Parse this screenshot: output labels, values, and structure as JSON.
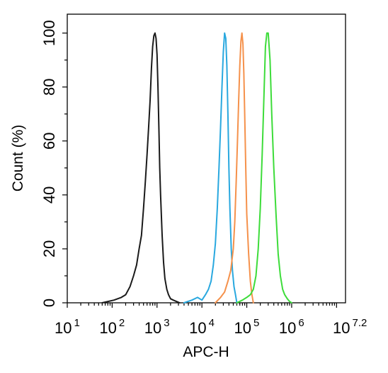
{
  "chart_data": {
    "type": "line",
    "xlabel": "APC-H",
    "ylabel": "Count  (%)",
    "x_scale": "log10",
    "xlim": [
      10,
      15848931.9
    ],
    "ylim": [
      0,
      107
    ],
    "x_tick_labels": [
      {
        "base": "10",
        "exp": "1"
      },
      {
        "base": "10",
        "exp": "2"
      },
      {
        "base": "10",
        "exp": "3"
      },
      {
        "base": "10",
        "exp": "4"
      },
      {
        "base": "10",
        "exp": "5"
      },
      {
        "base": "10",
        "exp": "6"
      },
      {
        "base": "10",
        "exp": "7.2"
      }
    ],
    "y_ticks": [
      0,
      20,
      40,
      60,
      80,
      100
    ],
    "grid": false,
    "legend": "none",
    "series": [
      {
        "color": "#1a1a1a",
        "x": [
          60,
          110,
          160,
          200,
          250,
          300,
          350,
          400,
          450,
          500,
          550,
          600,
          650,
          700,
          750,
          800,
          850,
          900,
          950,
          1000,
          1050,
          1100,
          1150,
          1200,
          1300,
          1400,
          1500,
          1650,
          1800,
          2000,
          2300,
          2700,
          3200
        ],
        "y": [
          0,
          1,
          2,
          3,
          6,
          10,
          14,
          20,
          25,
          35,
          45,
          55,
          65,
          75,
          87,
          95,
          99,
          100,
          98,
          92,
          80,
          65,
          50,
          40,
          25,
          15,
          9,
          5,
          3,
          1.5,
          1,
          0.5,
          0
        ]
      },
      {
        "color": "#29a8df",
        "x": [
          4000,
          6000,
          8000,
          10000,
          12000,
          14000,
          16000,
          18000,
          20000,
          22000,
          24000,
          26000,
          28000,
          30000,
          32000,
          34000,
          36000,
          38000,
          40000,
          42000,
          45000,
          48000,
          52000,
          56000,
          60000
        ],
        "y": [
          0,
          1,
          2,
          1,
          3,
          5,
          8,
          14,
          22,
          35,
          50,
          65,
          80,
          93,
          100,
          98,
          88,
          70,
          50,
          35,
          20,
          12,
          6,
          3,
          0
        ]
      },
      {
        "color": "#f5914b",
        "x": [
          20000,
          26000,
          32000,
          38000,
          44000,
          50000,
          54000,
          58000,
          62000,
          66000,
          70000,
          74000,
          78000,
          82000,
          86000,
          90000,
          95000,
          100000,
          110000,
          120000,
          130000,
          140000
        ],
        "y": [
          0,
          2,
          4,
          8,
          12,
          20,
          30,
          45,
          60,
          75,
          88,
          97,
          100,
          96,
          85,
          70,
          50,
          33,
          18,
          8,
          3,
          0
        ]
      },
      {
        "color": "#3ddc3a",
        "x": [
          60000,
          80000,
          100000,
          120000,
          140000,
          160000,
          180000,
          200000,
          220000,
          240000,
          260000,
          280000,
          300000,
          330000,
          360000,
          400000,
          450000,
          500000,
          560000,
          630000,
          700000,
          800000,
          900000,
          1000000
        ],
        "y": [
          0,
          1,
          2,
          3,
          5,
          10,
          20,
          35,
          55,
          75,
          95,
          100,
          100,
          90,
          70,
          50,
          32,
          18,
          10,
          5,
          3,
          1.5,
          0.5,
          0
        ]
      }
    ]
  }
}
